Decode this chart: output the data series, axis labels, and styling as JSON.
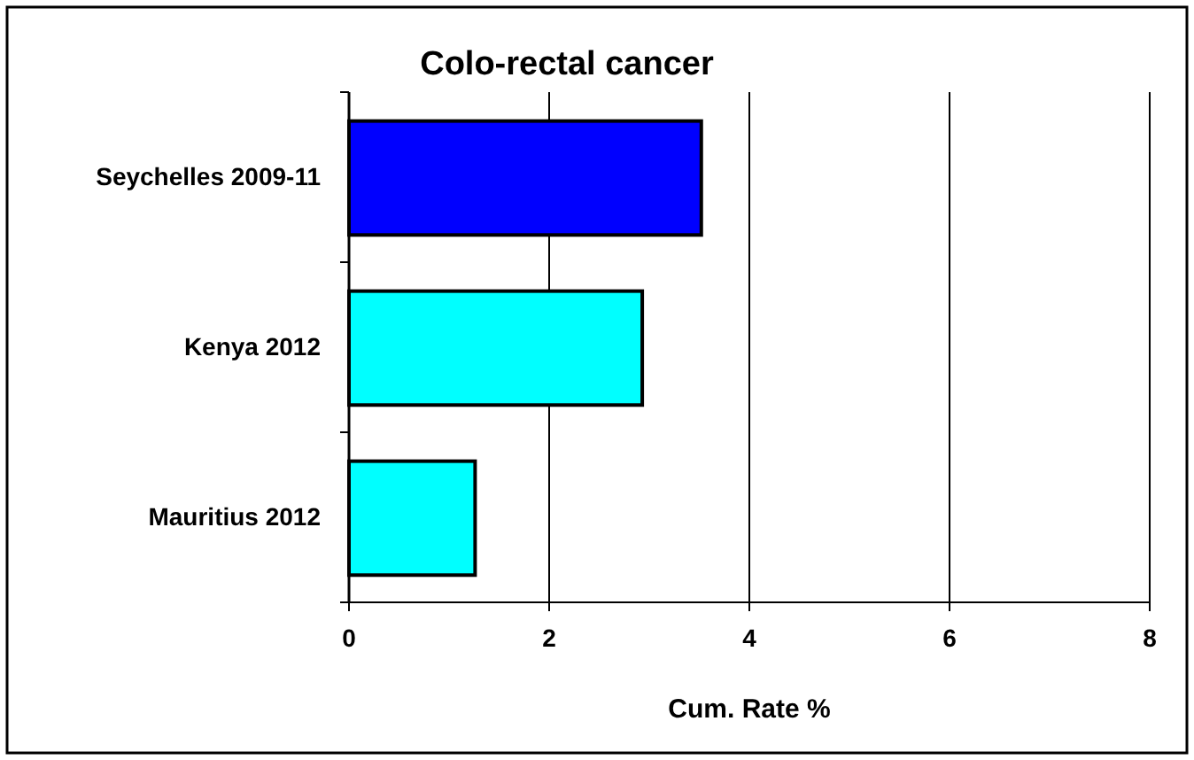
{
  "chart_data": {
    "type": "bar",
    "orientation": "horizontal",
    "title": "Colo-rectal cancer",
    "xlabel": "Cum. Rate %",
    "categories": [
      "Seychelles 2009-11",
      "Kenya 2012",
      "Mauritius 2012"
    ],
    "values": [
      3.52,
      2.93,
      1.26
    ],
    "colors": [
      "#0000ff",
      "#00ffff",
      "#00ffff"
    ],
    "xlim": [
      0,
      8
    ],
    "xticks": [
      0,
      2,
      4,
      6,
      8
    ],
    "grid": "x"
  }
}
